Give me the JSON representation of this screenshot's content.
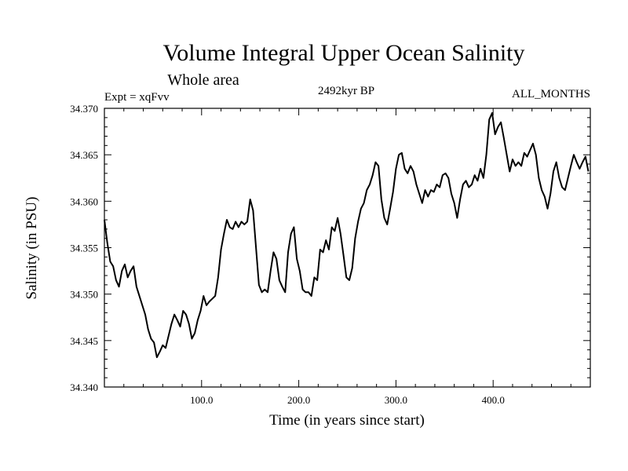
{
  "chart_data": {
    "type": "line",
    "title": "Volume Integral Upper Ocean Salinity",
    "subtitle": "Whole area",
    "expt_label": "Expt = xqFvv",
    "period_label": "2492kyr BP",
    "months_label": "ALL_MONTHS",
    "xlabel": "Time (in years since start)",
    "ylabel": "Salinity (in PSU)",
    "xlim": [
      0,
      500
    ],
    "ylim": [
      34.34,
      34.37
    ],
    "grid": false,
    "x_ticks": [
      {
        "value": 100,
        "label": "100.0"
      },
      {
        "value": 200,
        "label": "200.0"
      },
      {
        "value": 300,
        "label": "300.0"
      },
      {
        "value": 400,
        "label": "400.0"
      }
    ],
    "y_ticks": [
      {
        "value": 34.34,
        "label": "34.340"
      },
      {
        "value": 34.345,
        "label": "34.345"
      },
      {
        "value": 34.35,
        "label": "34.350"
      },
      {
        "value": 34.355,
        "label": "34.355"
      },
      {
        "value": 34.36,
        "label": "34.360"
      },
      {
        "value": 34.365,
        "label": "34.365"
      },
      {
        "value": 34.37,
        "label": "34.370"
      }
    ],
    "series": [
      {
        "name": "salinity",
        "color": "#000000",
        "points": [
          [
            0,
            34.358
          ],
          [
            3,
            34.3555
          ],
          [
            6,
            34.3535
          ],
          [
            9,
            34.353
          ],
          [
            12,
            34.3515
          ],
          [
            15,
            34.3508
          ],
          [
            18,
            34.3525
          ],
          [
            21,
            34.3532
          ],
          [
            24,
            34.3518
          ],
          [
            27,
            34.3525
          ],
          [
            30,
            34.353
          ],
          [
            33,
            34.3508
          ],
          [
            36,
            34.3498
          ],
          [
            39,
            34.3488
          ],
          [
            42,
            34.3478
          ],
          [
            45,
            34.3462
          ],
          [
            48,
            34.3452
          ],
          [
            51,
            34.3448
          ],
          [
            54,
            34.3432
          ],
          [
            57,
            34.3438
          ],
          [
            60,
            34.3445
          ],
          [
            63,
            34.3442
          ],
          [
            66,
            34.3455
          ],
          [
            69,
            34.3468
          ],
          [
            72,
            34.3478
          ],
          [
            75,
            34.3472
          ],
          [
            78,
            34.3465
          ],
          [
            81,
            34.3482
          ],
          [
            84,
            34.3478
          ],
          [
            87,
            34.3468
          ],
          [
            90,
            34.3452
          ],
          [
            93,
            34.3458
          ],
          [
            96,
            34.3472
          ],
          [
            99,
            34.3482
          ],
          [
            102,
            34.3498
          ],
          [
            105,
            34.3488
          ],
          [
            108,
            34.3492
          ],
          [
            111,
            34.3495
          ],
          [
            114,
            34.3498
          ],
          [
            117,
            34.3518
          ],
          [
            120,
            34.3548
          ],
          [
            123,
            34.3565
          ],
          [
            126,
            34.358
          ],
          [
            129,
            34.3572
          ],
          [
            132,
            34.357
          ],
          [
            135,
            34.3578
          ],
          [
            138,
            34.3572
          ],
          [
            141,
            34.3578
          ],
          [
            144,
            34.3575
          ],
          [
            147,
            34.3578
          ],
          [
            150,
            34.3602
          ],
          [
            153,
            34.359
          ],
          [
            156,
            34.355
          ],
          [
            159,
            34.351
          ],
          [
            162,
            34.3502
          ],
          [
            165,
            34.3505
          ],
          [
            168,
            34.3502
          ],
          [
            171,
            34.3525
          ],
          [
            174,
            34.3545
          ],
          [
            177,
            34.3538
          ],
          [
            180,
            34.3515
          ],
          [
            183,
            34.3508
          ],
          [
            186,
            34.3502
          ],
          [
            189,
            34.3545
          ],
          [
            192,
            34.3565
          ],
          [
            195,
            34.3572
          ],
          [
            198,
            34.3538
          ],
          [
            201,
            34.3525
          ],
          [
            204,
            34.3505
          ],
          [
            207,
            34.3502
          ],
          [
            210,
            34.3502
          ],
          [
            213,
            34.3498
          ],
          [
            216,
            34.3518
          ],
          [
            219,
            34.3515
          ],
          [
            222,
            34.3548
          ],
          [
            225,
            34.3545
          ],
          [
            228,
            34.3558
          ],
          [
            231,
            34.3548
          ],
          [
            234,
            34.3572
          ],
          [
            237,
            34.3568
          ],
          [
            240,
            34.3582
          ],
          [
            243,
            34.3565
          ],
          [
            246,
            34.3542
          ],
          [
            249,
            34.3518
          ],
          [
            252,
            34.3515
          ],
          [
            255,
            34.3528
          ],
          [
            258,
            34.356
          ],
          [
            261,
            34.3578
          ],
          [
            264,
            34.3592
          ],
          [
            267,
            34.3598
          ],
          [
            270,
            34.3612
          ],
          [
            273,
            34.3618
          ],
          [
            276,
            34.3628
          ],
          [
            279,
            34.3642
          ],
          [
            282,
            34.3638
          ],
          [
            285,
            34.3602
          ],
          [
            288,
            34.3582
          ],
          [
            291,
            34.3575
          ],
          [
            294,
            34.3592
          ],
          [
            297,
            34.361
          ],
          [
            300,
            34.3635
          ],
          [
            303,
            34.365
          ],
          [
            306,
            34.3652
          ],
          [
            309,
            34.3635
          ],
          [
            312,
            34.363
          ],
          [
            315,
            34.3638
          ],
          [
            318,
            34.3632
          ],
          [
            321,
            34.3618
          ],
          [
            324,
            34.3608
          ],
          [
            327,
            34.3598
          ],
          [
            330,
            34.3612
          ],
          [
            333,
            34.3605
          ],
          [
            336,
            34.3612
          ],
          [
            339,
            34.361
          ],
          [
            342,
            34.3618
          ],
          [
            345,
            34.3615
          ],
          [
            348,
            34.3628
          ],
          [
            351,
            34.363
          ],
          [
            354,
            34.3625
          ],
          [
            357,
            34.3608
          ],
          [
            360,
            34.3598
          ],
          [
            363,
            34.3582
          ],
          [
            366,
            34.3602
          ],
          [
            369,
            34.3618
          ],
          [
            372,
            34.3622
          ],
          [
            375,
            34.3615
          ],
          [
            378,
            34.3618
          ],
          [
            381,
            34.3628
          ],
          [
            384,
            34.3622
          ],
          [
            387,
            34.3635
          ],
          [
            390,
            34.3625
          ],
          [
            393,
            34.365
          ],
          [
            396,
            34.3688
          ],
          [
            399,
            34.3695
          ],
          [
            402,
            34.3672
          ],
          [
            405,
            34.368
          ],
          [
            408,
            34.3685
          ],
          [
            411,
            34.3668
          ],
          [
            414,
            34.365
          ],
          [
            417,
            34.3632
          ],
          [
            420,
            34.3645
          ],
          [
            423,
            34.3638
          ],
          [
            426,
            34.3642
          ],
          [
            429,
            34.3638
          ],
          [
            432,
            34.3652
          ],
          [
            435,
            34.3648
          ],
          [
            438,
            34.3655
          ],
          [
            441,
            34.3662
          ],
          [
            444,
            34.365
          ],
          [
            447,
            34.3625
          ],
          [
            450,
            34.3612
          ],
          [
            453,
            34.3605
          ],
          [
            456,
            34.3592
          ],
          [
            459,
            34.3608
          ],
          [
            462,
            34.3632
          ],
          [
            465,
            34.3642
          ],
          [
            468,
            34.3625
          ],
          [
            471,
            34.3615
          ],
          [
            474,
            34.3612
          ],
          [
            477,
            34.3625
          ],
          [
            480,
            34.3638
          ],
          [
            483,
            34.365
          ],
          [
            486,
            34.3642
          ],
          [
            489,
            34.3635
          ],
          [
            492,
            34.3642
          ],
          [
            495,
            34.3648
          ],
          [
            498,
            34.3632
          ]
        ]
      }
    ]
  }
}
